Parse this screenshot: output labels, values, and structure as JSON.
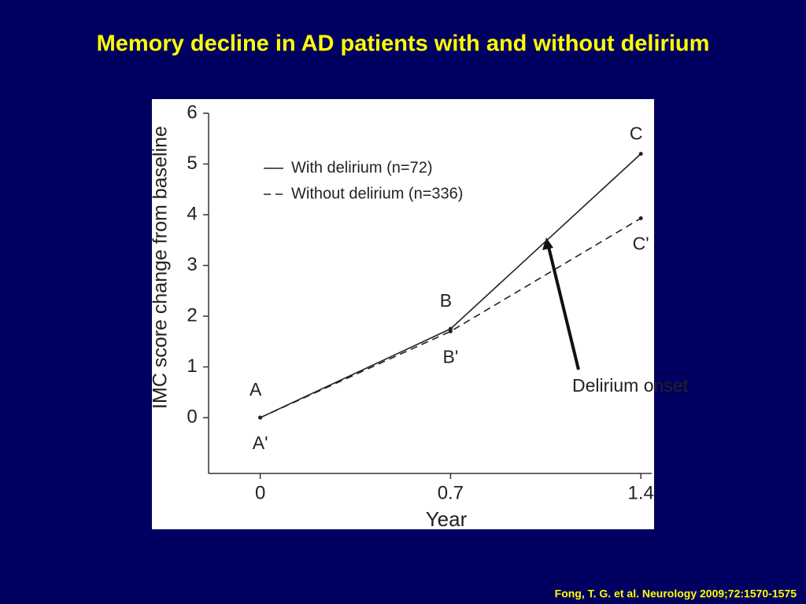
{
  "chart_data": {
    "type": "line",
    "title": "Memory decline in AD patients with and without delirium",
    "x_label": "Year",
    "y_label": "IMC score change from baseline",
    "x": [
      0,
      0.7,
      1.4
    ],
    "series": [
      {
        "name": "With delirium (n=72)",
        "color": "#222222",
        "dash": "solid",
        "values": [
          0,
          1.75,
          5.2
        ],
        "point_labels": [
          "A",
          "B",
          "C"
        ]
      },
      {
        "name": "Without delirium (n=336)",
        "color": "#222222",
        "dash": "dashed",
        "values": [
          0,
          1.7,
          3.93
        ],
        "point_labels": [
          "A'",
          "B'",
          "C'"
        ]
      }
    ],
    "xlim": [
      -0.19,
      1.44
    ],
    "ylim": [
      -1.1,
      6
    ],
    "xticks": [
      0,
      0.7,
      1.4
    ],
    "yticks": [
      0,
      1,
      2,
      3,
      4,
      5,
      6
    ],
    "annotation": "Delirium onset",
    "legend": "upper left"
  },
  "source": "Fong, T. G. et al. Neurology 2009;72:1570-1575"
}
